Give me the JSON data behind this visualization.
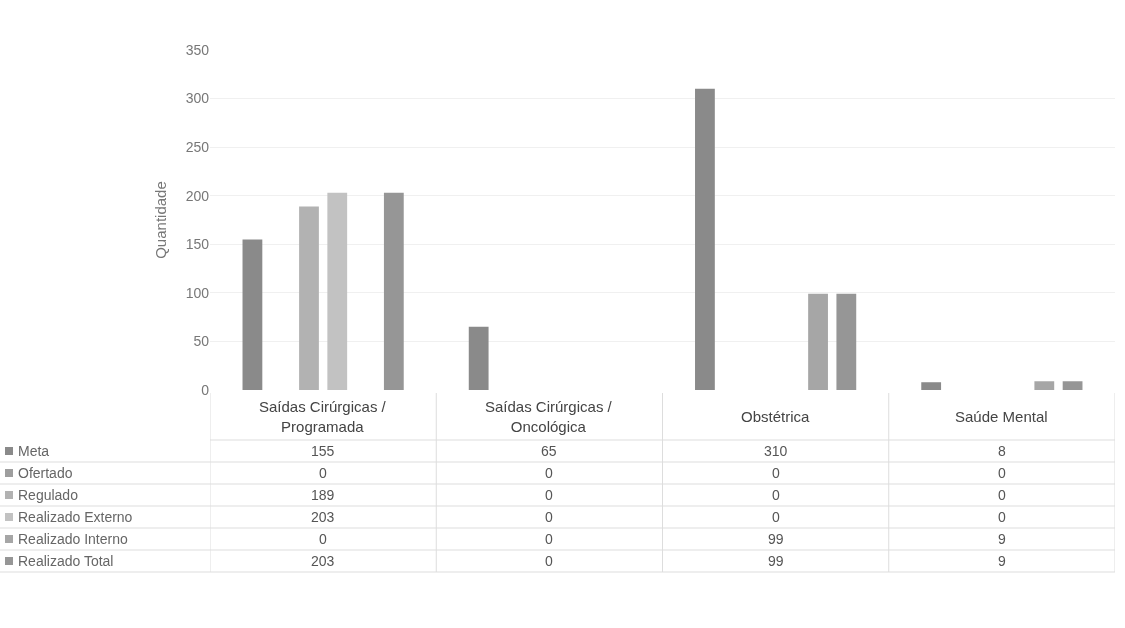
{
  "chart_data": {
    "type": "bar",
    "ylabel": "Quantidade",
    "categories": [
      "Saídas Cirúrgicas / Programada",
      "Saídas Cirúrgicas / Oncológica",
      "Obstétrica",
      "Saúde Mental"
    ],
    "series": [
      {
        "name": "Meta",
        "color": "#8a8a8a",
        "values": [
          155,
          65,
          310,
          8
        ]
      },
      {
        "name": "Ofertado",
        "color": "#9e9e9e",
        "values": [
          0,
          0,
          0,
          0
        ]
      },
      {
        "name": "Regulado",
        "color": "#b2b2b2",
        "values": [
          189,
          0,
          0,
          0
        ]
      },
      {
        "name": "Realizado Externo",
        "color": "#c2c2c2",
        "values": [
          203,
          0,
          0,
          0
        ]
      },
      {
        "name": "Realizado Interno",
        "color": "#a6a6a6",
        "values": [
          0,
          0,
          99,
          9
        ]
      },
      {
        "name": "Realizado Total",
        "color": "#969696",
        "values": [
          203,
          0,
          99,
          9
        ]
      }
    ],
    "ylim": [
      0,
      350
    ],
    "yticks": [
      0,
      50,
      100,
      150,
      200,
      250,
      300,
      350
    ],
    "grid": "y",
    "data_labels": true,
    "legend": "bottom left"
  }
}
